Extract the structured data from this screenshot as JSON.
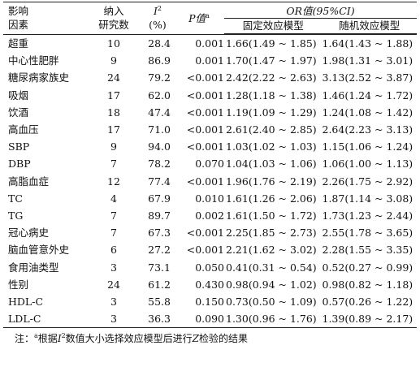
{
  "table": {
    "headers": {
      "factor": [
        "影响",
        "因素"
      ],
      "studies": [
        "纳入",
        "研究数"
      ],
      "i2": {
        "symbol": "I",
        "sup": "2",
        "unit": "(%)"
      },
      "p": {
        "label": "P值",
        "sup": "a"
      },
      "or_group": "OR值(95%CI)",
      "fixed": "固定效应模型",
      "random": "随机效应模型"
    },
    "rows": [
      {
        "factor": "超重",
        "n": "10",
        "i2": "28.4",
        "p": "0.001",
        "fixed": "1.66(1.49 ~ 1.85)",
        "random": "1.64(1.43 ~ 1.88)"
      },
      {
        "factor": "中心性肥胖",
        "n": "9",
        "i2": "86.9",
        "p": "0.001",
        "fixed": "1.70(1.47 ~ 1.97)",
        "random": "1.98(1.31 ~ 3.01)"
      },
      {
        "factor": "糖尿病家族史",
        "n": "24",
        "i2": "79.2",
        "p": "<0.001",
        "fixed": "2.42(2.22 ~ 2.63)",
        "random": "3.13(2.52 ~ 3.87)"
      },
      {
        "factor": "吸烟",
        "n": "17",
        "i2": "62.0",
        "p": "<0.001",
        "fixed": "1.28(1.18 ~ 1.38)",
        "random": "1.46(1.24 ~ 1.72)"
      },
      {
        "factor": "饮酒",
        "n": "18",
        "i2": "47.4",
        "p": "<0.001",
        "fixed": "1.19(1.09 ~ 1.29)",
        "random": "1.24(1.08 ~ 1.42)"
      },
      {
        "factor": "高血压",
        "n": "17",
        "i2": "71.0",
        "p": "<0.001",
        "fixed": "2.61(2.40 ~ 2.85)",
        "random": "2.64(2.23 ~ 3.13)"
      },
      {
        "factor": "SBP",
        "n": "9",
        "i2": "94.0",
        "p": "<0.001",
        "fixed": "1.03(1.02 ~ 1.03)",
        "random": "1.15(1.06 ~ 1.24)"
      },
      {
        "factor": "DBP",
        "n": "7",
        "i2": "78.2",
        "p": "0.070",
        "fixed": "1.04(1.03 ~ 1.06)",
        "random": "1.06(1.00 ~ 1.13)"
      },
      {
        "factor": "高脂血症",
        "n": "12",
        "i2": "77.4",
        "p": "<0.001",
        "fixed": "1.96(1.76 ~ 2.19)",
        "random": "2.26(1.75 ~ 2.92)"
      },
      {
        "factor": "TC",
        "n": "4",
        "i2": "67.9",
        "p": "0.010",
        "fixed": "1.61(1.26 ~ 2.06)",
        "random": "1.87(1.14 ~ 3.08)"
      },
      {
        "factor": "TG",
        "n": "7",
        "i2": "89.7",
        "p": "0.002",
        "fixed": "1.61(1.50 ~ 1.72)",
        "random": "1.73(1.23 ~ 2.44)"
      },
      {
        "factor": "冠心病史",
        "n": "7",
        "i2": "67.3",
        "p": "<0.001",
        "fixed": "2.25(1.85 ~ 2.73)",
        "random": "2.55(1.78 ~ 3.65)"
      },
      {
        "factor": "脑血管意外史",
        "n": "6",
        "i2": "27.2",
        "p": "<0.001",
        "fixed": "2.21(1.62 ~ 3.02)",
        "random": "2.28(1.55 ~ 3.35)"
      },
      {
        "factor": "食用油类型",
        "n": "3",
        "i2": "73.1",
        "p": "0.050",
        "fixed": "0.41(0.31 ~ 0.54)",
        "random": "0.52(0.27 ~ 0.99)"
      },
      {
        "factor": "性别",
        "n": "24",
        "i2": "61.2",
        "p": "0.430",
        "fixed": "0.98(0.94 ~ 1.02)",
        "random": "0.98(0.82 ~ 1.18)"
      },
      {
        "factor": "HDL-C",
        "n": "3",
        "i2": "55.8",
        "p": "0.150",
        "fixed": "0.73(0.50 ~ 1.09)",
        "random": "0.57(0.26 ~ 1.22)"
      },
      {
        "factor": "LDL-C",
        "n": "3",
        "i2": "36.3",
        "p": "0.090",
        "fixed": "1.30(0.96 ~ 1.76)",
        "random": "1.39(0.89 ~ 2.17)"
      }
    ],
    "note": {
      "prefix": "注：",
      "sup_a": "a",
      "text1": "根据",
      "i_symbol": "I",
      "i_sup": "2",
      "text2": "数值大小选择效应模型后进行",
      "z_symbol": "Z",
      "text3": "检验的结果"
    }
  }
}
